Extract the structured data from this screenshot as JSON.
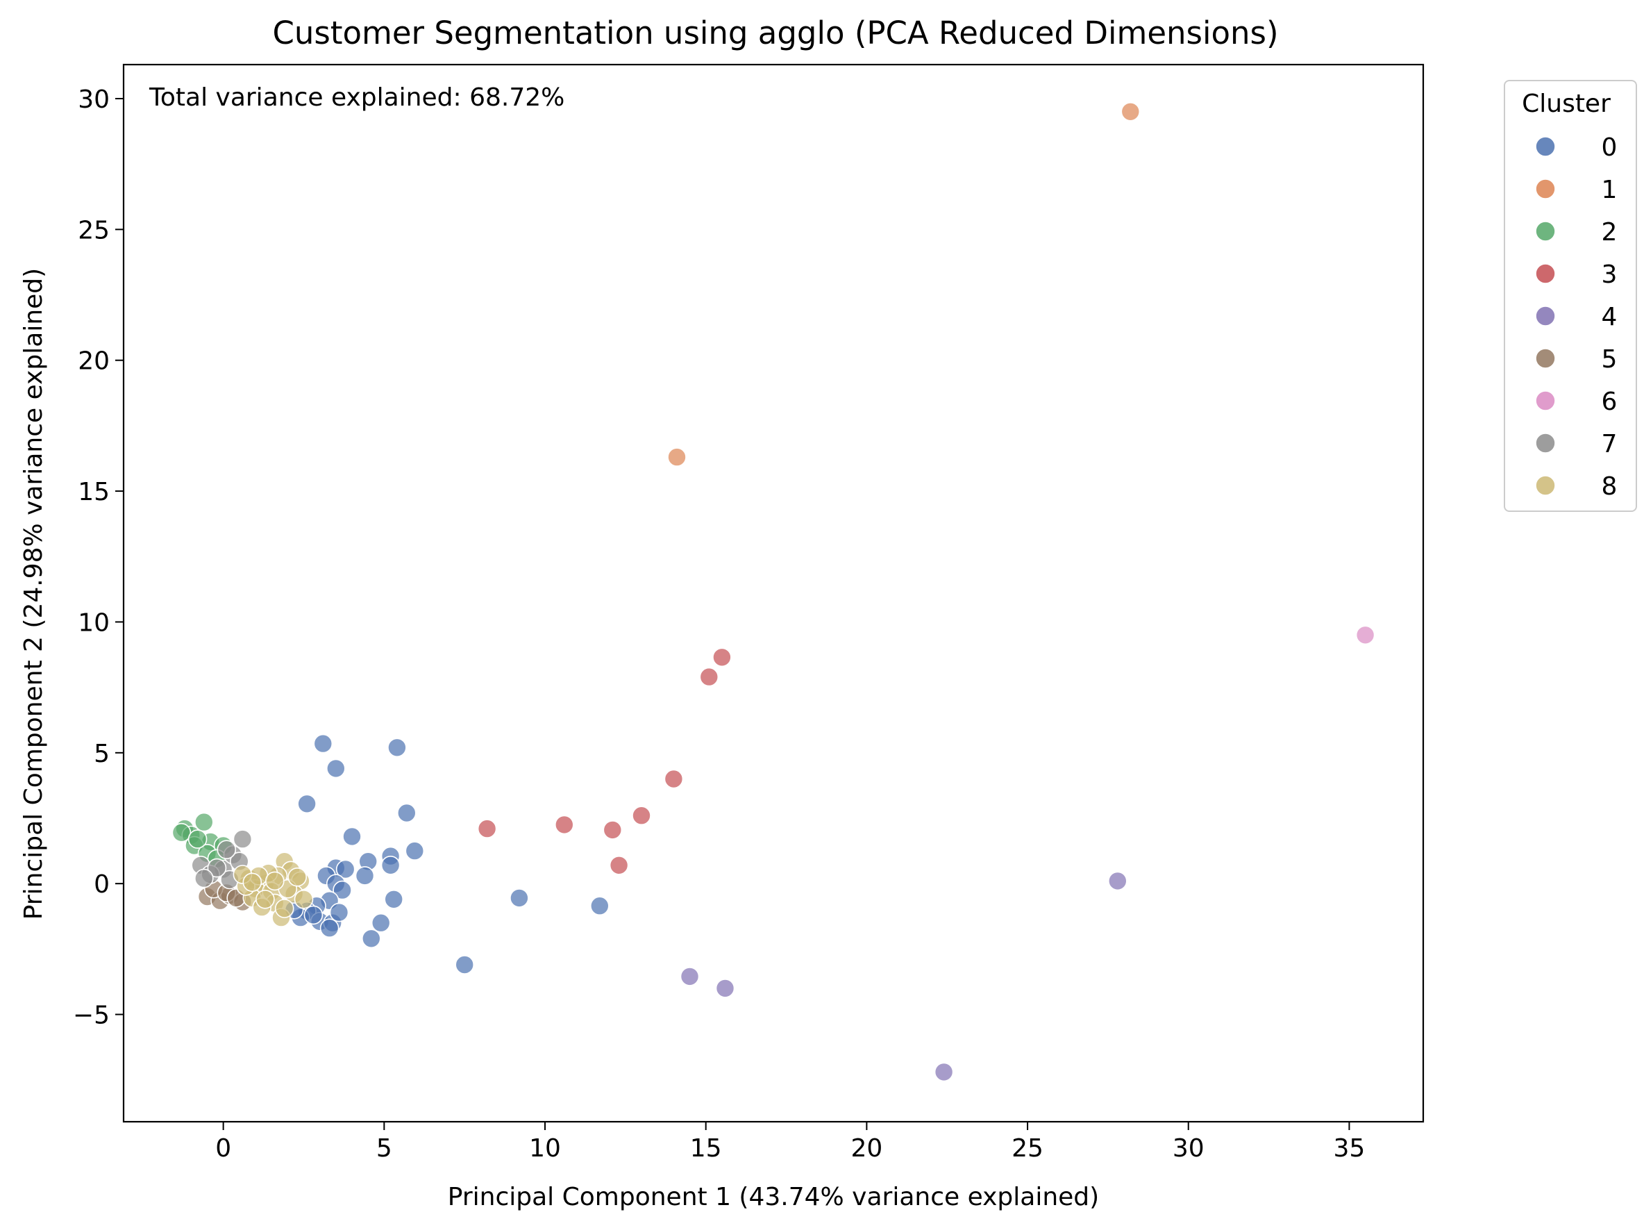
{
  "chart_data": {
    "type": "scatter",
    "title": "Customer Segmentation using agglo (PCA Reduced Dimensions)",
    "xlabel": "Principal Component 1 (43.74% variance explained)",
    "ylabel": "Principal Component 2 (24.98% variance explained)",
    "annotation": "Total variance explained: 68.72%",
    "xlim": [
      -3.1,
      37.3
    ],
    "ylim": [
      -9.1,
      31.3
    ],
    "xticks": [
      0,
      5,
      10,
      15,
      20,
      25,
      30,
      35
    ],
    "yticks": [
      -5,
      0,
      5,
      10,
      15,
      20,
      25,
      30
    ],
    "tick_labels_x": [
      "0",
      "5",
      "10",
      "15",
      "20",
      "25",
      "30",
      "35"
    ],
    "tick_labels_y": [
      "−5",
      "0",
      "5",
      "10",
      "15",
      "20",
      "25",
      "30"
    ],
    "grid": false,
    "legend": {
      "title": "Cluster",
      "placement": "outside-right-top",
      "entries": [
        "0",
        "1",
        "2",
        "3",
        "4",
        "5",
        "6",
        "7",
        "8"
      ]
    },
    "colors": [
      "#4c72b0",
      "#dd8452",
      "#55a868",
      "#c44e52",
      "#8172b3",
      "#937860",
      "#da8bc3",
      "#8c8c8c",
      "#ccb974"
    ],
    "series": [
      {
        "name": "0",
        "points": [
          [
            3.1,
            5.35
          ],
          [
            3.5,
            4.4
          ],
          [
            5.4,
            5.2
          ],
          [
            2.6,
            3.05
          ],
          [
            5.7,
            2.7
          ],
          [
            4.0,
            1.8
          ],
          [
            5.95,
            1.25
          ],
          [
            5.2,
            1.05
          ],
          [
            4.5,
            0.85
          ],
          [
            3.5,
            0.6
          ],
          [
            3.8,
            0.55
          ],
          [
            5.2,
            0.7
          ],
          [
            4.4,
            0.3
          ],
          [
            3.2,
            0.3
          ],
          [
            3.5,
            0.0
          ],
          [
            3.7,
            -0.25
          ],
          [
            5.3,
            -0.6
          ],
          [
            9.2,
            -0.55
          ],
          [
            11.7,
            -0.85
          ],
          [
            3.3,
            -0.65
          ],
          [
            2.9,
            -0.85
          ],
          [
            2.6,
            -1.05
          ],
          [
            2.4,
            -1.3
          ],
          [
            3.0,
            -1.45
          ],
          [
            3.4,
            -1.5
          ],
          [
            3.3,
            -1.7
          ],
          [
            4.9,
            -1.5
          ],
          [
            4.6,
            -2.1
          ],
          [
            7.5,
            -3.1
          ],
          [
            2.2,
            -1.0
          ],
          [
            2.8,
            -1.2
          ],
          [
            3.6,
            -1.1
          ]
        ]
      },
      {
        "name": "1",
        "points": [
          [
            28.2,
            29.5
          ],
          [
            14.1,
            16.3
          ]
        ]
      },
      {
        "name": "2",
        "points": [
          [
            -1.2,
            2.1
          ],
          [
            -0.6,
            2.35
          ],
          [
            -1.0,
            1.85
          ],
          [
            -0.4,
            1.6
          ],
          [
            -0.9,
            1.45
          ],
          [
            0.0,
            1.45
          ],
          [
            -0.5,
            1.15
          ],
          [
            -0.2,
            0.95
          ],
          [
            -1.3,
            1.95
          ],
          [
            -0.8,
            1.7
          ]
        ]
      },
      {
        "name": "3",
        "points": [
          [
            15.5,
            8.65
          ],
          [
            15.1,
            7.9
          ],
          [
            14.0,
            4.0
          ],
          [
            13.0,
            2.6
          ],
          [
            10.6,
            2.25
          ],
          [
            8.2,
            2.1
          ],
          [
            12.1,
            2.05
          ],
          [
            12.3,
            0.7
          ]
        ]
      },
      {
        "name": "4",
        "points": [
          [
            27.8,
            0.1
          ],
          [
            14.5,
            -3.55
          ],
          [
            15.6,
            -4.0
          ],
          [
            22.4,
            -7.2
          ]
        ]
      },
      {
        "name": "5",
        "points": [
          [
            -0.5,
            -0.5
          ],
          [
            -0.1,
            -0.65
          ],
          [
            0.2,
            -0.45
          ],
          [
            0.6,
            -0.7
          ],
          [
            -0.3,
            -0.2
          ],
          [
            0.1,
            -0.35
          ],
          [
            0.4,
            -0.55
          ]
        ]
      },
      {
        "name": "6",
        "points": [
          [
            35.5,
            9.5
          ]
        ]
      },
      {
        "name": "7",
        "points": [
          [
            0.6,
            1.7
          ],
          [
            -0.7,
            0.7
          ],
          [
            0.0,
            0.55
          ],
          [
            0.3,
            1.1
          ],
          [
            -0.4,
            0.35
          ],
          [
            0.2,
            0.15
          ],
          [
            0.5,
            0.85
          ],
          [
            -0.2,
            0.6
          ],
          [
            0.1,
            1.3
          ],
          [
            -0.6,
            0.2
          ]
        ]
      },
      {
        "name": "8",
        "points": [
          [
            1.9,
            0.85
          ],
          [
            2.1,
            0.5
          ],
          [
            1.7,
            0.3
          ],
          [
            0.8,
            0.2
          ],
          [
            1.3,
            0.0
          ],
          [
            2.4,
            0.1
          ],
          [
            1.0,
            -0.2
          ],
          [
            1.5,
            -0.3
          ],
          [
            2.2,
            -0.4
          ],
          [
            0.9,
            -0.55
          ],
          [
            1.6,
            -0.75
          ],
          [
            1.2,
            -0.9
          ],
          [
            1.8,
            -1.3
          ],
          [
            2.0,
            -0.2
          ],
          [
            1.4,
            0.4
          ],
          [
            0.7,
            -0.1
          ],
          [
            1.1,
            0.3
          ],
          [
            2.5,
            -0.6
          ],
          [
            0.6,
            0.35
          ],
          [
            1.9,
            -0.95
          ],
          [
            1.3,
            -0.6
          ],
          [
            2.3,
            0.25
          ],
          [
            0.9,
            0.05
          ],
          [
            1.6,
            0.1
          ]
        ]
      }
    ]
  }
}
